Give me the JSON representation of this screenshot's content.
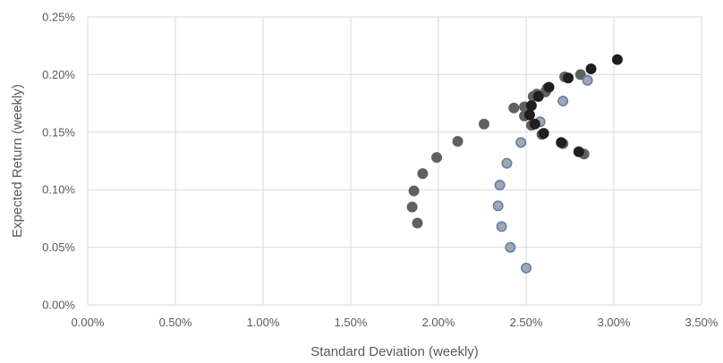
{
  "chart_data": {
    "type": "scatter",
    "title": "",
    "xlabel": "Standard Deviation (weekly)",
    "ylabel": "Expected Return (weekly)",
    "xlim": [
      0,
      3.5
    ],
    "ylim": [
      0,
      0.25
    ],
    "x_ticks": [
      "0.00%",
      "0.50%",
      "1.00%",
      "1.50%",
      "2.00%",
      "2.50%",
      "3.00%",
      "3.50%"
    ],
    "y_ticks": [
      "0.00%",
      "0.05%",
      "0.10%",
      "0.15%",
      "0.20%",
      "0.25%"
    ],
    "grid": true,
    "legend": "none",
    "series": [
      {
        "color": "#606060",
        "edge": "#606060",
        "points": [
          [
            1.88,
            0.071
          ],
          [
            1.85,
            0.085
          ],
          [
            1.86,
            0.099
          ],
          [
            1.91,
            0.114
          ],
          [
            1.99,
            0.128
          ],
          [
            2.11,
            0.142
          ],
          [
            2.26,
            0.157
          ],
          [
            2.43,
            0.171
          ],
          [
            2.49,
            0.172
          ],
          [
            2.49,
            0.164
          ],
          [
            2.54,
            0.181
          ],
          [
            2.56,
            0.183
          ],
          [
            2.61,
            0.185
          ],
          [
            2.62,
            0.188
          ],
          [
            2.53,
            0.156
          ],
          [
            2.59,
            0.148
          ],
          [
            2.71,
            0.14
          ],
          [
            2.72,
            0.198
          ],
          [
            2.81,
            0.2
          ],
          [
            2.83,
            0.131
          ]
        ]
      },
      {
        "color": "#a6a6a6",
        "edge": "#5b7fc1",
        "points": [
          [
            2.5,
            0.032
          ],
          [
            2.41,
            0.05
          ],
          [
            2.36,
            0.068
          ],
          [
            2.34,
            0.086
          ],
          [
            2.35,
            0.104
          ],
          [
            2.39,
            0.123
          ],
          [
            2.47,
            0.141
          ],
          [
            2.58,
            0.159
          ],
          [
            2.71,
            0.177
          ],
          [
            2.85,
            0.195
          ]
        ]
      },
      {
        "color": "#1f1f1f",
        "edge": "#1f1f1f",
        "points": [
          [
            2.52,
            0.165
          ],
          [
            2.55,
            0.157
          ],
          [
            2.53,
            0.173
          ],
          [
            2.57,
            0.181
          ],
          [
            2.63,
            0.189
          ],
          [
            2.74,
            0.197
          ],
          [
            2.87,
            0.205
          ],
          [
            3.02,
            0.213
          ],
          [
            2.6,
            0.149
          ],
          [
            2.7,
            0.141
          ],
          [
            2.8,
            0.133
          ]
        ]
      }
    ]
  }
}
